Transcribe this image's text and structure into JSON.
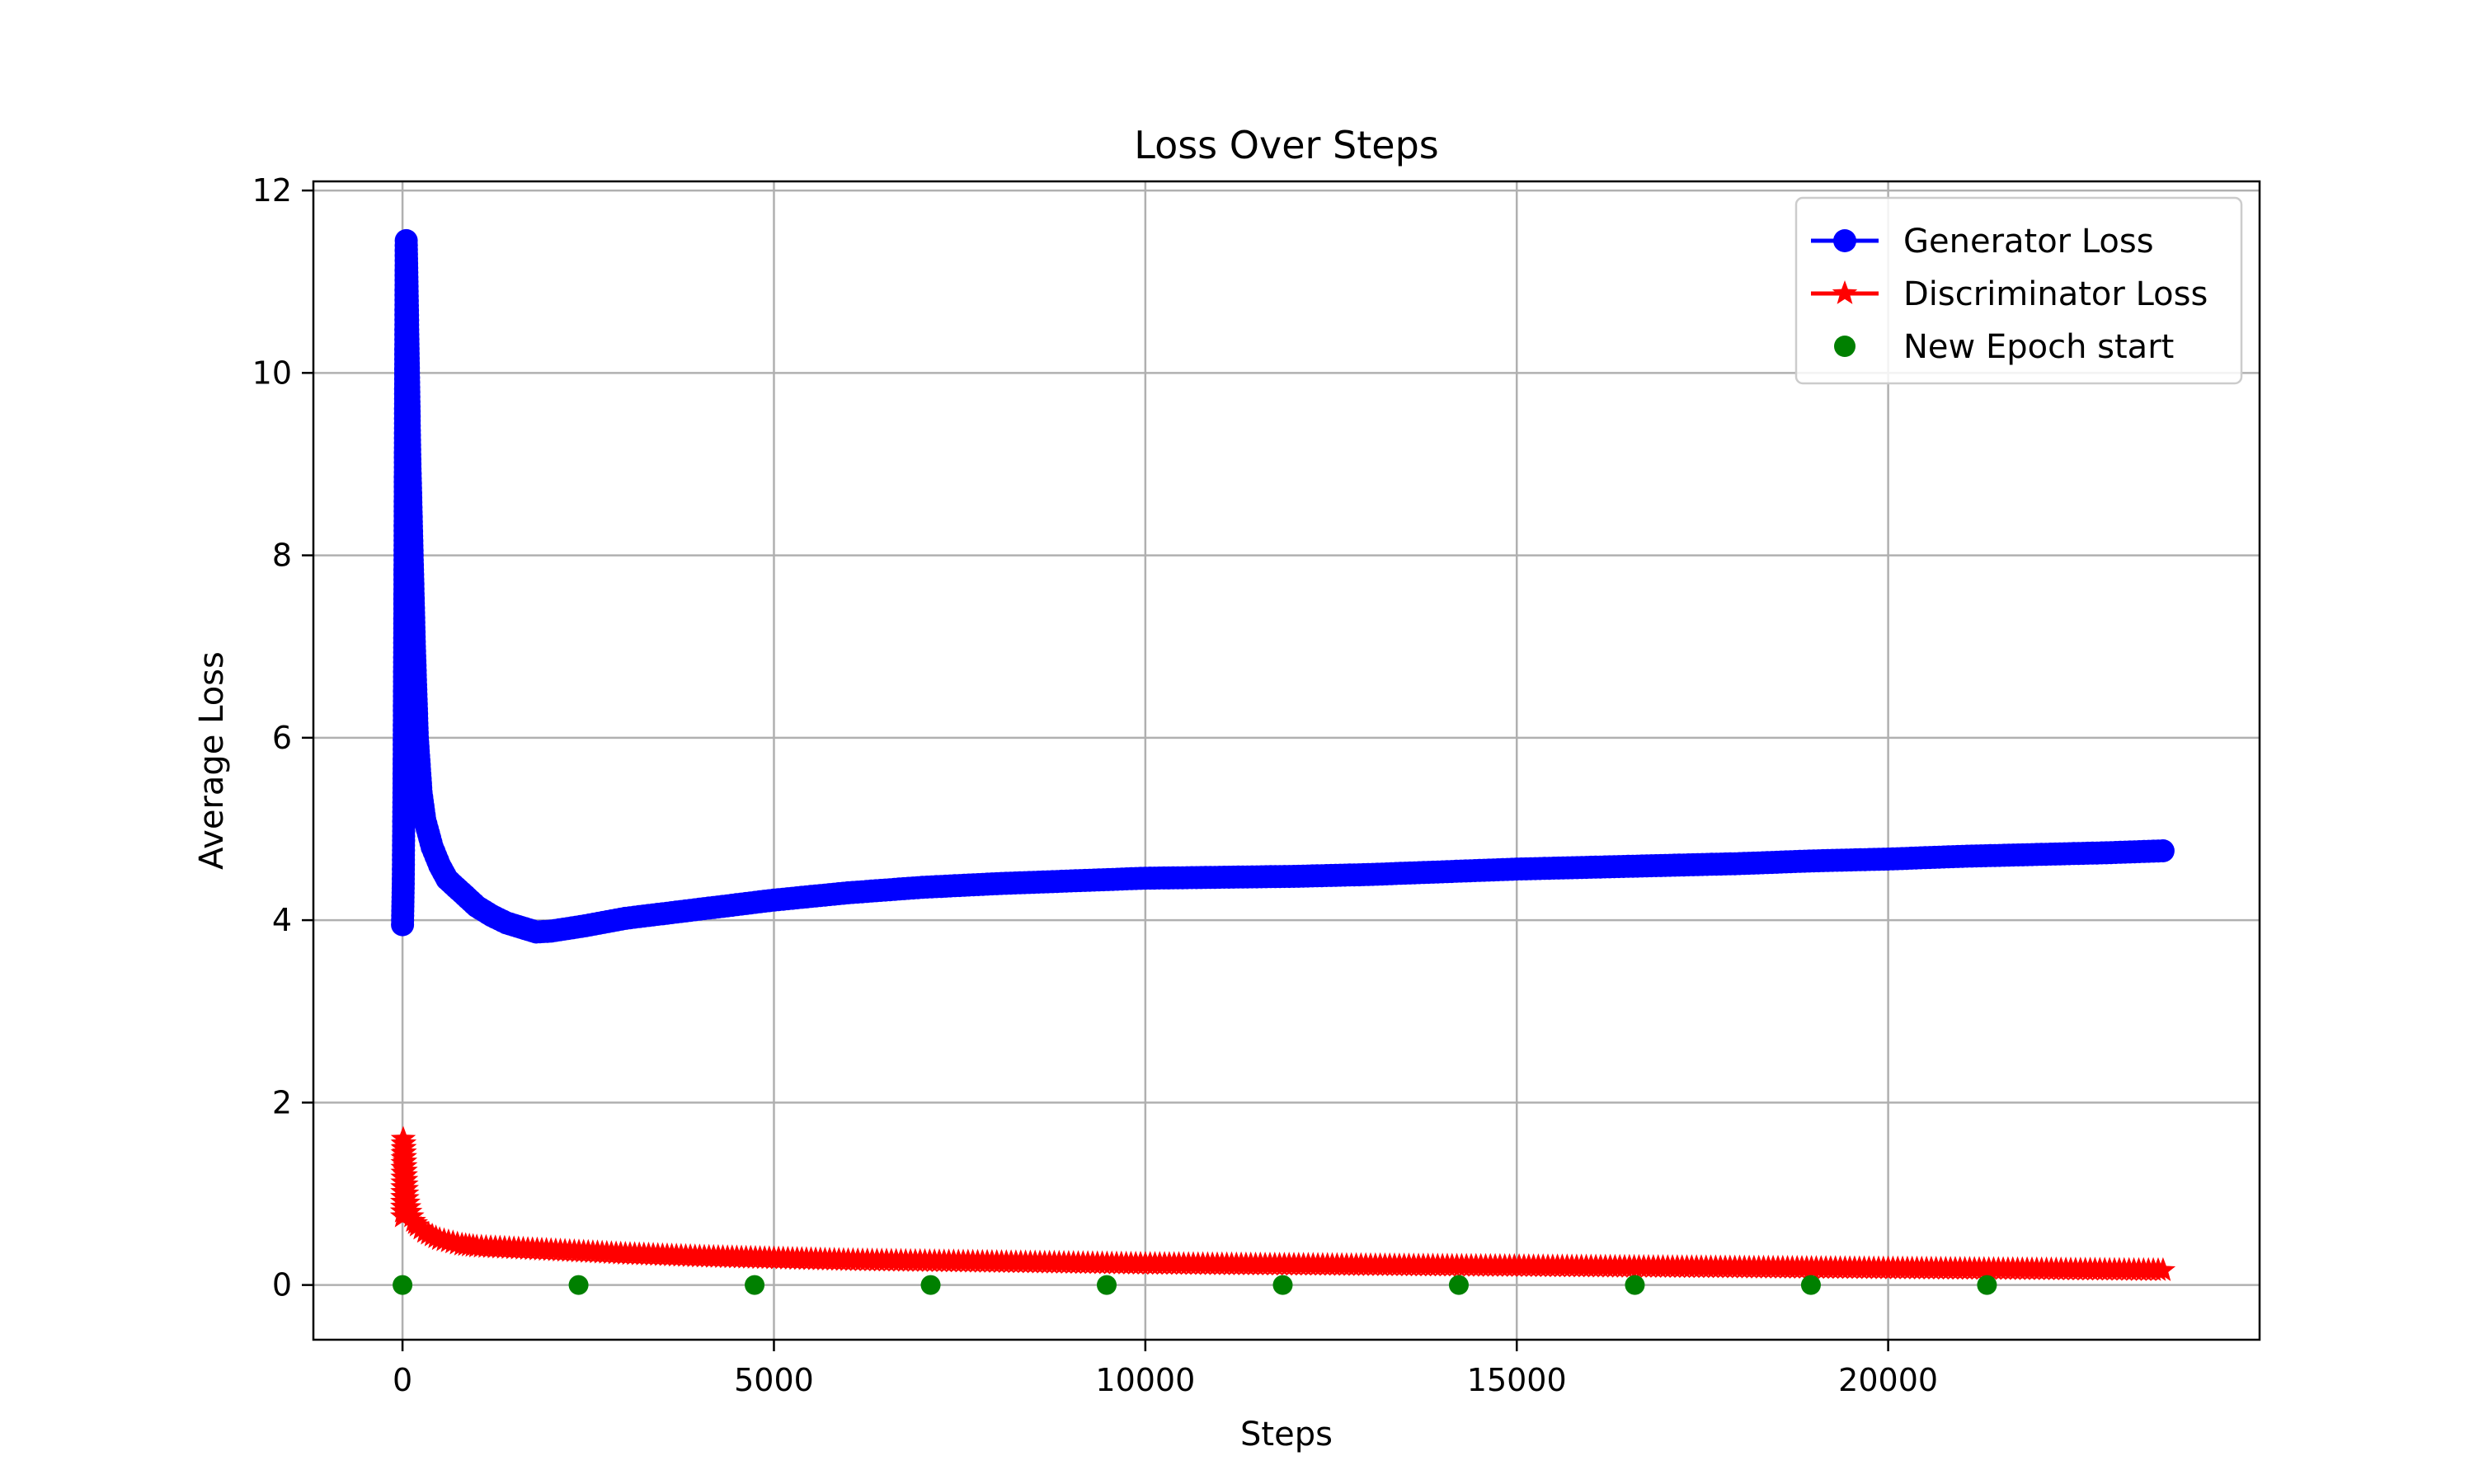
{
  "chart_data": {
    "type": "line",
    "title": "Loss Over Steps",
    "xlabel": "Steps",
    "ylabel": "Average Loss",
    "xlim": [
      -1200,
      25000
    ],
    "ylim": [
      -0.6,
      12.1
    ],
    "xticks": [
      0,
      5000,
      10000,
      15000,
      20000
    ],
    "yticks": [
      0,
      2,
      4,
      6,
      8,
      10,
      12
    ],
    "grid": true,
    "legend_position": "top-right",
    "series": [
      {
        "name": "Generator Loss",
        "color": "#0000ff",
        "marker": "circle",
        "x": [
          0,
          10,
          20,
          30,
          40,
          50,
          60,
          80,
          100,
          130,
          160,
          200,
          250,
          300,
          400,
          500,
          600,
          800,
          1000,
          1200,
          1400,
          1600,
          1800,
          2000,
          2400,
          3000,
          4000,
          5000,
          6000,
          7000,
          8000,
          9000,
          10000,
          11000,
          12000,
          13000,
          14000,
          15000,
          16000,
          17000,
          18000,
          19000,
          20000,
          21000,
          22000,
          23000,
          23700
        ],
        "y": [
          3.95,
          4.4,
          5.5,
          7.2,
          9.5,
          11.45,
          11.0,
          10.0,
          9.0,
          8.0,
          7.0,
          6.0,
          5.4,
          5.1,
          4.8,
          4.6,
          4.45,
          4.3,
          4.15,
          4.05,
          3.97,
          3.92,
          3.87,
          3.88,
          3.93,
          4.02,
          4.12,
          4.22,
          4.3,
          4.36,
          4.4,
          4.43,
          4.46,
          4.47,
          4.48,
          4.5,
          4.53,
          4.56,
          4.58,
          4.6,
          4.62,
          4.65,
          4.67,
          4.7,
          4.72,
          4.74,
          4.76
        ]
      },
      {
        "name": "Discriminator Loss",
        "color": "#ff0000",
        "marker": "star",
        "x": [
          0,
          10,
          20,
          40,
          60,
          100,
          150,
          200,
          300,
          500,
          800,
          1000,
          1500,
          2000,
          3000,
          4000,
          5000,
          6000,
          8000,
          10000,
          12000,
          14000,
          16000,
          18000,
          20000,
          22000,
          23700
        ],
        "y": [
          0.75,
          1.6,
          1.55,
          1.2,
          0.95,
          0.8,
          0.7,
          0.65,
          0.58,
          0.5,
          0.44,
          0.42,
          0.4,
          0.38,
          0.34,
          0.31,
          0.29,
          0.27,
          0.25,
          0.23,
          0.22,
          0.21,
          0.2,
          0.19,
          0.18,
          0.17,
          0.16
        ]
      },
      {
        "name": "New Epoch start",
        "color": "#008000",
        "marker": "circle",
        "type": "scatter",
        "x": [
          0,
          2370,
          4740,
          7110,
          9480,
          11850,
          14220,
          16590,
          18960,
          21330
        ],
        "y": [
          0,
          0,
          0,
          0,
          0,
          0,
          0,
          0,
          0,
          0
        ]
      }
    ]
  }
}
